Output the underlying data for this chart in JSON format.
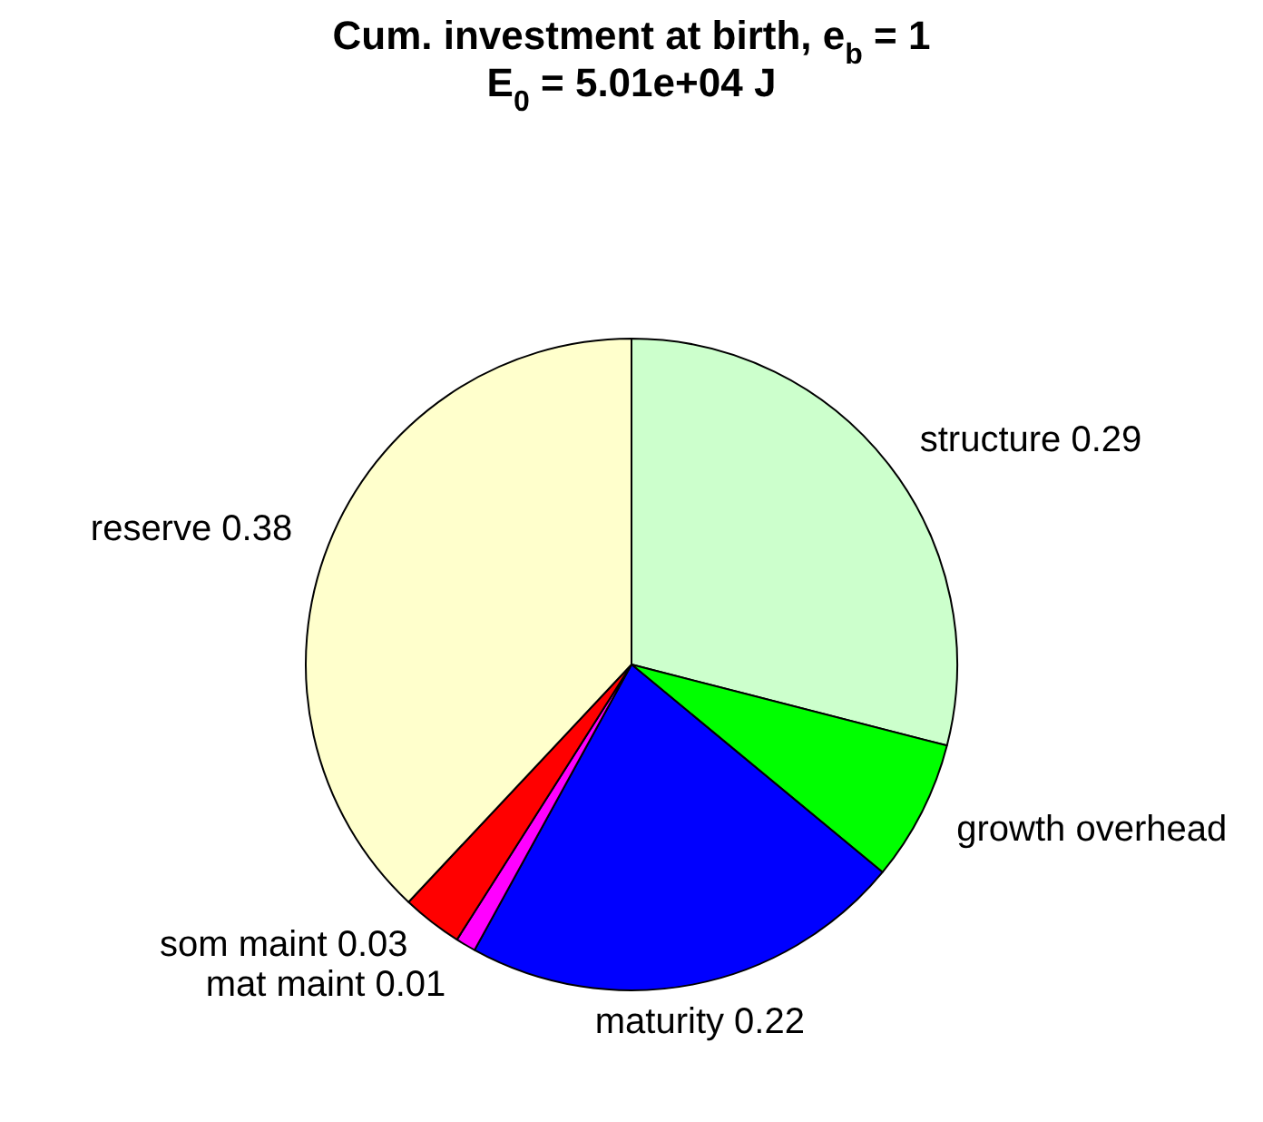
{
  "chart_data": {
    "type": "pie",
    "title": "Cum. investment at birth, e$_{b}$ = 1",
    "subtitle": "E$_{0}$ = 5.01e+04 J",
    "categories": [
      "structure",
      "growth overhead",
      "maturity",
      "mat maint",
      "som maint",
      "reserve"
    ],
    "values": [
      0.29,
      0.07,
      0.22,
      0.01,
      0.03,
      0.38
    ],
    "colors": [
      "#ccffcc",
      "#00ff00",
      "#0000ff",
      "#ff00ff",
      "#ff0000",
      "#ffffcc"
    ],
    "value_labels": [
      "0.29",
      null,
      "0.22",
      "0.01",
      "0.03",
      "0.38"
    ]
  }
}
